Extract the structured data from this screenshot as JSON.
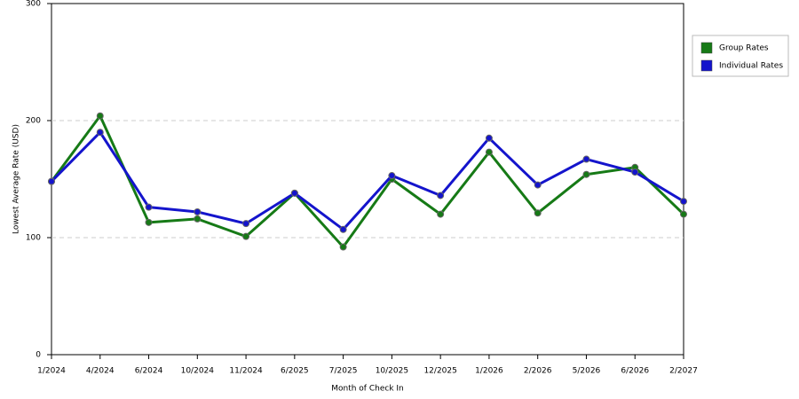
{
  "chart_data": {
    "type": "line",
    "x_label": "Month of Check In",
    "y_label": "Lowest Average Rate (USD)",
    "categories": [
      "1/2024",
      "4/2024",
      "6/2024",
      "10/2024",
      "11/2024",
      "6/2025",
      "7/2025",
      "10/2025",
      "12/2025",
      "1/2026",
      "2/2026",
      "5/2026",
      "6/2026",
      "2/2027"
    ],
    "series": [
      {
        "name": "Group Rates",
        "color": "#167a16",
        "values": [
          148,
          204,
          113,
          116,
          101,
          138,
          92,
          150,
          120,
          173,
          121,
          154,
          160,
          120
        ]
      },
      {
        "name": "Individual Rates",
        "color": "#1414cc",
        "values": [
          148,
          190,
          126,
          122,
          112,
          138,
          107,
          153,
          136,
          185,
          145,
          167,
          156,
          131
        ]
      }
    ],
    "ylim": [
      0,
      300
    ],
    "yticks": [
      0,
      100,
      200,
      300
    ],
    "grid": true,
    "legend": "right"
  }
}
